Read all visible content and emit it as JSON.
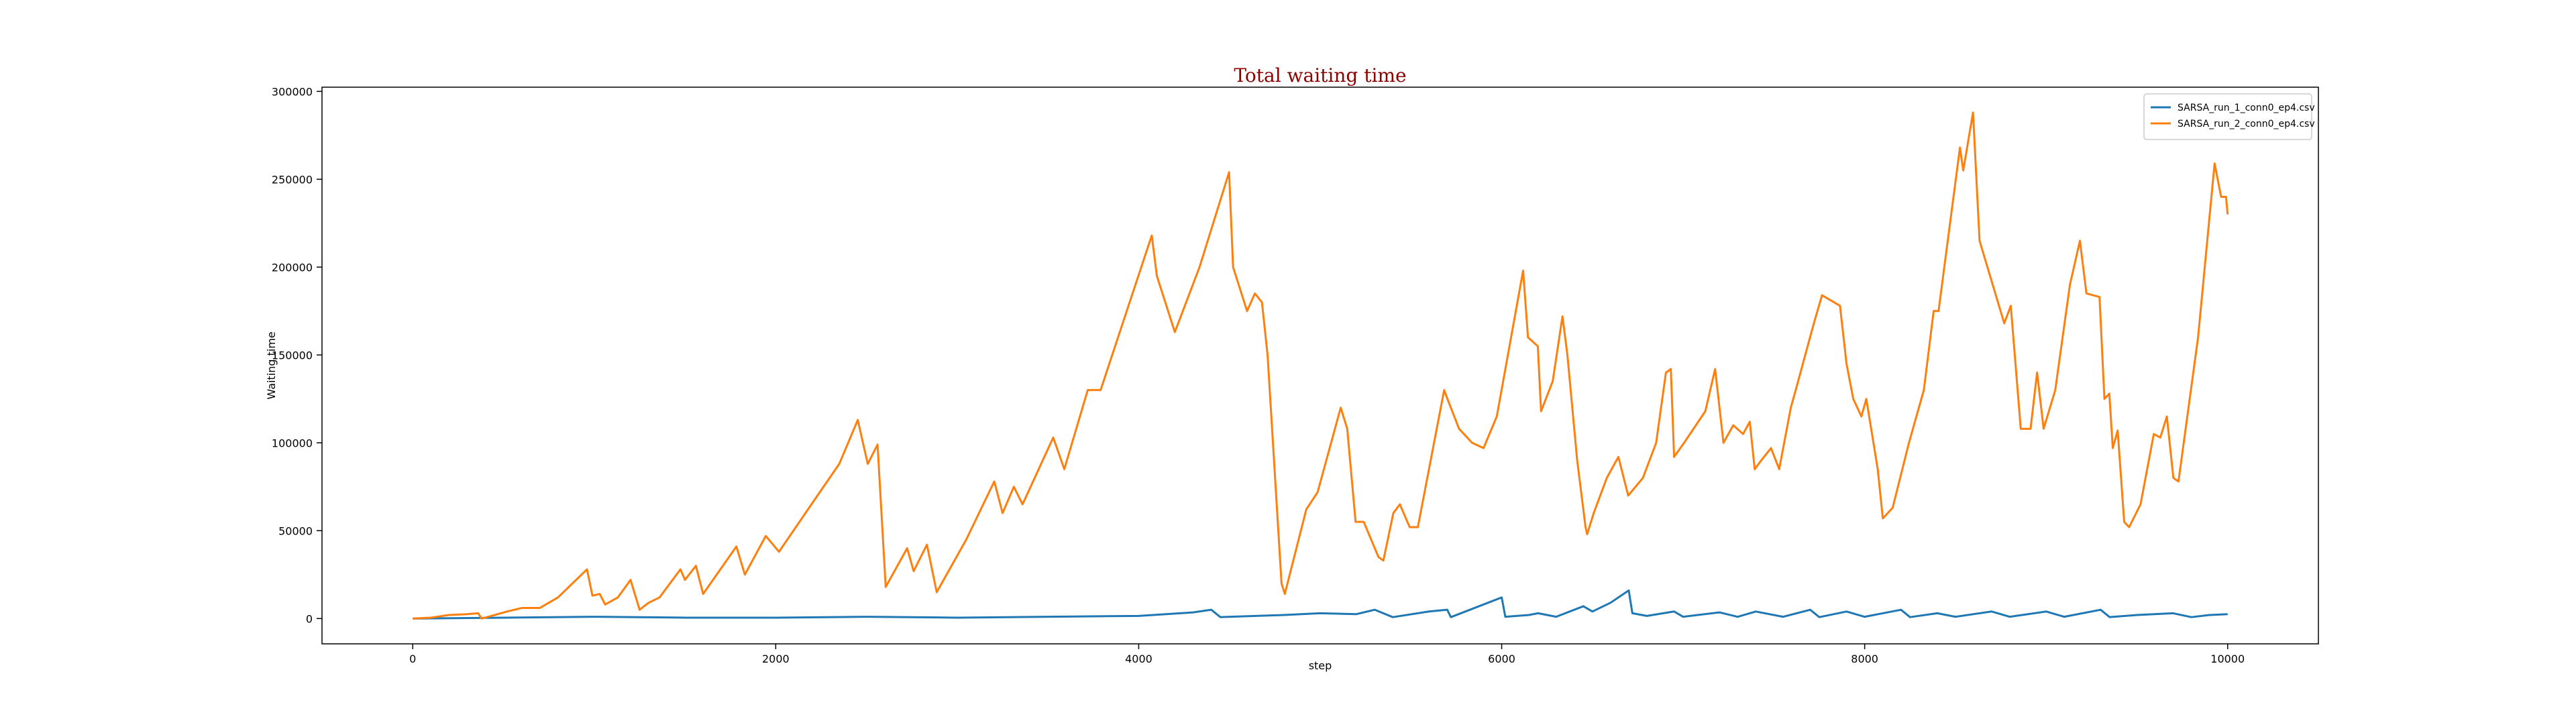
{
  "chart_data": {
    "type": "line",
    "title": "Total waiting time",
    "xlabel": "step",
    "ylabel": "Waiting time",
    "xlim": [
      -500,
      10500
    ],
    "ylim": [
      -14400,
      302400
    ],
    "xticks": [
      0,
      2000,
      4000,
      6000,
      8000,
      10000
    ],
    "yticks": [
      0,
      50000,
      100000,
      150000,
      200000,
      250000,
      300000
    ],
    "legend": "upper right",
    "series": [
      {
        "name": "SARSA_run_1_conn0_ep4.csv",
        "color": "#1f77b4",
        "x": [
          0,
          500,
          1000,
          1500,
          2000,
          2500,
          3000,
          3500,
          4000,
          4300,
          4400,
          4450,
          4800,
          5000,
          5200,
          5300,
          5400,
          5600,
          5700,
          5720,
          6000,
          6020,
          6150,
          6200,
          6300,
          6400,
          6450,
          6500,
          6600,
          6700,
          6720,
          6800,
          6950,
          7000,
          7200,
          7300,
          7400,
          7550,
          7700,
          7750,
          7900,
          8000,
          8200,
          8250,
          8400,
          8500,
          8700,
          8800,
          9000,
          9100,
          9300,
          9350,
          9500,
          9700,
          9800,
          9900,
          10000
        ],
        "values": [
          0,
          500,
          1000,
          500,
          500,
          1000,
          500,
          1000,
          1500,
          3500,
          5000,
          800,
          2000,
          3000,
          2500,
          5000,
          800,
          4000,
          5000,
          800,
          12000,
          1000,
          2000,
          3000,
          1000,
          5000,
          7000,
          4000,
          9000,
          16000,
          3000,
          1500,
          4000,
          1000,
          3500,
          1000,
          4000,
          1000,
          5000,
          800,
          4000,
          1000,
          5000,
          800,
          3000,
          1000,
          4000,
          1000,
          4000,
          1000,
          5000,
          800,
          2000,
          3000,
          800,
          2000,
          2500
        ]
      },
      {
        "name": "SARSA_run_2_conn0_ep4.csv",
        "color": "#ff7f0e",
        "x": [
          0,
          100,
          200,
          300,
          360,
          380,
          450,
          520,
          600,
          700,
          800,
          960,
          990,
          1030,
          1060,
          1130,
          1200,
          1250,
          1300,
          1360,
          1475,
          1500,
          1560,
          1600,
          1783,
          1830,
          1945,
          2018,
          2230,
          2350,
          2452,
          2507,
          2561,
          2606,
          2724,
          2760,
          2833,
          2887,
          3050,
          3204,
          3250,
          3312,
          3360,
          3529,
          3590,
          3719,
          3790,
          3950,
          4072,
          4100,
          4199,
          4335,
          4498,
          4520,
          4597,
          4640,
          4679,
          4710,
          4787,
          4805,
          4923,
          4986,
          5113,
          5149,
          5195,
          5240,
          5321,
          5348,
          5403,
          5439,
          5493,
          5538,
          5683,
          5701,
          5765,
          5837,
          5900,
          5973,
          6118,
          6145,
          6199,
          6217,
          6281,
          6335,
          6362,
          6416,
          6462,
          6471,
          6507,
          6579,
          6643,
          6697,
          6778,
          6851,
          6905,
          6932,
          6950,
          7005,
          7122,
          7176,
          7222,
          7276,
          7330,
          7367,
          7394,
          7430,
          7484,
          7529,
          7593,
          7620,
          7720,
          7765,
          7864,
          7900,
          7937,
          7982,
          8009,
          8072,
          8100,
          8154,
          8244,
          8326,
          8380,
          8407,
          8525,
          8543,
          8597,
          8633,
          8769,
          8805,
          8860,
          8914,
          8950,
          8986,
          9050,
          9131,
          9186,
          9222,
          9294,
          9321,
          9348,
          9367,
          9394,
          9430,
          9457,
          9520,
          9593,
          9629,
          9665,
          9701,
          9729,
          9837,
          9928,
          9964,
          9991,
          10000
        ],
        "values": [
          0,
          500,
          2000,
          2500,
          3000,
          0,
          2000,
          4000,
          6000,
          6000,
          12000,
          28000,
          13000,
          14000,
          8000,
          12000,
          22000,
          5000,
          9000,
          12000,
          28000,
          22000,
          30000,
          14000,
          41000,
          25000,
          47000,
          38000,
          70000,
          88000,
          113000,
          88000,
          99000,
          18000,
          40000,
          27000,
          42000,
          15000,
          45000,
          78000,
          60000,
          75000,
          65000,
          103000,
          85000,
          130000,
          130000,
          180000,
          218000,
          195000,
          163000,
          200000,
          254000,
          200000,
          175000,
          185000,
          180000,
          150000,
          20000,
          14000,
          62000,
          72000,
          120000,
          108000,
          55000,
          55000,
          35000,
          33000,
          60000,
          65000,
          52000,
          52000,
          130000,
          125000,
          108000,
          100000,
          97000,
          115000,
          198000,
          160000,
          155000,
          118000,
          135000,
          172000,
          150000,
          90000,
          52000,
          48000,
          60000,
          80000,
          92000,
          70000,
          80000,
          100000,
          140000,
          142000,
          92000,
          100000,
          118000,
          142000,
          100000,
          110000,
          105000,
          112000,
          85000,
          90000,
          97000,
          85000,
          120000,
          130000,
          168000,
          184000,
          178000,
          145000,
          125000,
          115000,
          125000,
          85000,
          57000,
          63000,
          100000,
          130000,
          175000,
          175000,
          268000,
          255000,
          288000,
          215000,
          168000,
          178000,
          108000,
          108000,
          140000,
          108000,
          130000,
          190000,
          215000,
          185000,
          183000,
          125000,
          128000,
          97000,
          107000,
          55000,
          52000,
          65000,
          105000,
          103000,
          115000,
          80000,
          78000,
          160000,
          259000,
          240000,
          240000,
          230000
        ]
      }
    ]
  }
}
